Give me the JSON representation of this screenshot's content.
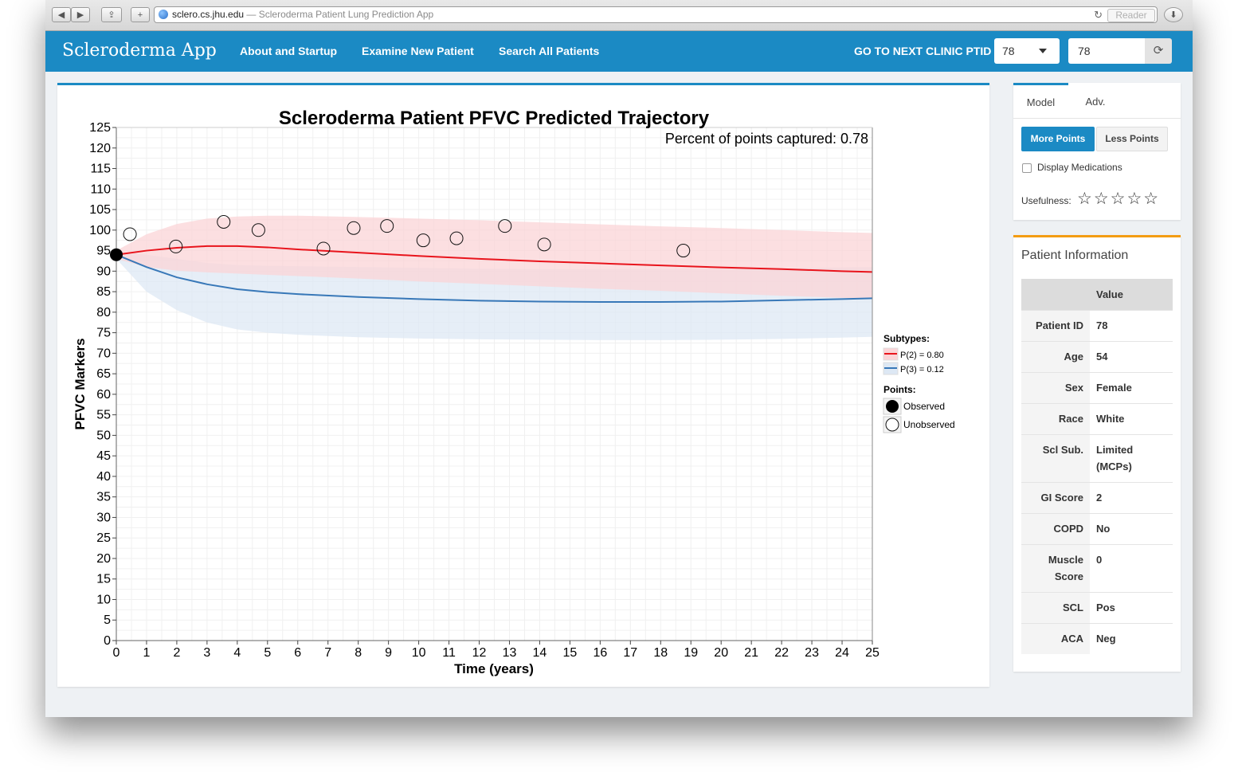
{
  "browser": {
    "url": "sclero.cs.jhu.edu",
    "title": "— Scleroderma Patient Lung Prediction App",
    "reader_label": "Reader"
  },
  "navbar": {
    "brand": "Scleroderma App",
    "links": [
      "About and Startup",
      "Examine New Patient",
      "Search All Patients"
    ],
    "next_clinic_label": "GO TO NEXT CLINIC PTID",
    "ptid_select": "78",
    "ptid_input": "78"
  },
  "side": {
    "tabs": [
      "Model",
      "Adv."
    ],
    "more_points": "More Points",
    "less_points": "Less Points",
    "display_medications": "Display Medications",
    "usefulness_label": "Usefulness:",
    "stars": "☆☆☆☆☆"
  },
  "patient": {
    "title": "Patient Information",
    "value_header": "Value",
    "rows": [
      {
        "k": "Patient ID",
        "v": "78"
      },
      {
        "k": "Age",
        "v": "54"
      },
      {
        "k": "Sex",
        "v": "Female"
      },
      {
        "k": "Race",
        "v": "White"
      },
      {
        "k": "Scl Sub.",
        "v": "Limited (MCPs)"
      },
      {
        "k": "GI Score",
        "v": "2"
      },
      {
        "k": "COPD",
        "v": "No"
      },
      {
        "k": "Muscle Score",
        "v": "0"
      },
      {
        "k": "SCL",
        "v": "Pos"
      },
      {
        "k": "ACA",
        "v": "Neg"
      }
    ]
  },
  "chart_data": {
    "type": "line",
    "title": "Scleroderma Patient PFVC Predicted Trajectory",
    "annotation": "Percent of points captured:  0.78",
    "xlabel": "Time (years)",
    "ylabel": "PFVC Markers",
    "xlim": [
      0,
      25
    ],
    "ylim": [
      0,
      125
    ],
    "xticks": [
      0,
      1,
      2,
      3,
      4,
      5,
      6,
      7,
      8,
      9,
      10,
      11,
      12,
      13,
      14,
      15,
      16,
      17,
      18,
      19,
      20,
      21,
      22,
      23,
      24,
      25
    ],
    "yticks": [
      0,
      5,
      10,
      15,
      20,
      25,
      30,
      35,
      40,
      45,
      50,
      55,
      60,
      65,
      70,
      75,
      80,
      85,
      90,
      95,
      100,
      105,
      110,
      115,
      120,
      125
    ],
    "grid": true,
    "legend_position": "right",
    "subtypes_label": "Subtypes:",
    "points_label": "Points:",
    "series": [
      {
        "name": "P(2) = 0.80",
        "color": "#e8141c",
        "band_color": "#fbd4d7",
        "x": [
          0,
          1,
          2,
          3,
          4,
          5,
          6,
          8,
          10,
          12,
          14,
          16,
          18,
          20,
          22,
          24,
          25
        ],
        "y": [
          94,
          95,
          95.7,
          96.1,
          96.1,
          95.8,
          95.3,
          94.5,
          93.7,
          93,
          92.4,
          91.9,
          91.4,
          90.9,
          90.5,
          90,
          89.8
        ],
        "upper": [
          95,
          99,
          101.5,
          102.8,
          103.3,
          103.5,
          103.5,
          103.2,
          102.8,
          102.4,
          101.9,
          101.4,
          100.9,
          100.5,
          100,
          99.5,
          99.3
        ],
        "lower": [
          93,
          91,
          90.1,
          89.7,
          89.4,
          89.1,
          88.8,
          88.2,
          87.5,
          86.9,
          86.3,
          85.7,
          85.2,
          84.6,
          84,
          83.5,
          83.2
        ]
      },
      {
        "name": "P(3) = 0.12",
        "color": "#3878b8",
        "band_color": "#dde8f4",
        "x": [
          0,
          1,
          2,
          3,
          4,
          5,
          6,
          8,
          10,
          12,
          14,
          16,
          18,
          20,
          22,
          24,
          25
        ],
        "y": [
          94,
          91,
          88.5,
          86.8,
          85.6,
          84.9,
          84.4,
          83.7,
          83.2,
          82.8,
          82.6,
          82.5,
          82.5,
          82.6,
          82.9,
          83.2,
          83.4
        ],
        "upper": [
          95,
          94,
          93,
          92,
          91.5,
          91.3,
          91.2,
          91,
          90.8,
          90.6,
          90.5,
          90.5,
          90.5,
          90.6,
          90.7,
          90.9,
          91
        ],
        "lower": [
          93,
          85,
          80.5,
          77.5,
          75.8,
          75,
          74.5,
          73.9,
          73.6,
          73.4,
          73.3,
          73.2,
          73.2,
          73.3,
          73.5,
          73.8,
          74
        ]
      }
    ],
    "observed_points": {
      "name": "Observed",
      "x": [
        0
      ],
      "y": [
        94
      ]
    },
    "unobserved_points": {
      "name": "Unobserved",
      "x": [
        0.45,
        1.97,
        3.55,
        4.7,
        6.85,
        7.85,
        8.95,
        10.15,
        11.25,
        12.85,
        14.15,
        18.75
      ],
      "y": [
        99,
        96,
        102,
        100,
        95.5,
        100.5,
        101,
        97.5,
        98,
        101,
        96.5,
        95
      ]
    }
  }
}
